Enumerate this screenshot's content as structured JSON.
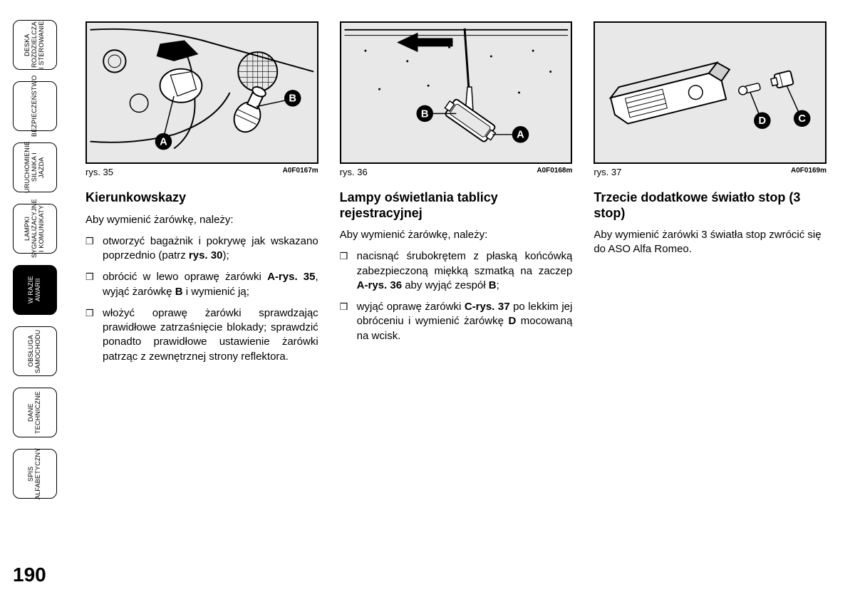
{
  "page_number": "190",
  "sidebar": {
    "tabs": [
      {
        "label": "DESKA\nROZDZIELCZA\nI STEROWANIE",
        "active": false
      },
      {
        "label": "BEZPIECZEŃSTWO",
        "active": false
      },
      {
        "label": "URUCHOMIENIE\nSILNIKA I JAZDA",
        "active": false
      },
      {
        "label": "LAMPKI\nSYGNALIZACYJNE\nI KOMUNIKATY",
        "active": false
      },
      {
        "label": "W RAZIE\nAWARII",
        "active": true
      },
      {
        "label": "OBSŁUGA\nSAMOCHODU",
        "active": false
      },
      {
        "label": "DANE\nTECHNICZNE",
        "active": false
      },
      {
        "label": "SPIS\nALFABETYCZNY",
        "active": false
      }
    ]
  },
  "columns": [
    {
      "figure": {
        "label": "rys. 35",
        "code": "A0F0167m",
        "callouts": [
          "A",
          "B"
        ]
      },
      "title": "Kierunkowskazy",
      "intro": "Aby wymienić żarówkę, należy:",
      "bullets": [
        "otworzyć bagażnik i pokrywę jak wskazano poprzednio (patrz <b>rys. 30</b>);",
        "obrócić w lewo oprawę żarówki <b>A-rys. 35</b>, wyjąć żarówkę <b>B</b> i wymienić ją;",
        "włożyć oprawę żarówki sprawdzając prawidłowe zatrzaśnięcie blokady; sprawdzić ponadto prawidłowe ustawienie żarówki patrząc z zewnętrznej strony reflektora."
      ]
    },
    {
      "figure": {
        "label": "rys. 36",
        "code": "A0F0168m",
        "callouts": [
          "B",
          "A"
        ]
      },
      "title": "Lampy oświetlania tablicy rejestracyjnej",
      "intro": "Aby wymienić żarówkę, należy:",
      "bullets": [
        "nacisnąć śrubokrętem z płaską końcówką zabezpieczoną miękką szmatką na zaczep <b>A-rys. 36</b> aby wyjąć zespół <b>B</b>;",
        "wyjąć oprawę żarówki <b>C-rys. 37</b> po lekkim jej obróceniu i wymienić żarówkę <b>D</b> mocowaną na wcisk."
      ]
    },
    {
      "figure": {
        "label": "rys. 37",
        "code": "A0F0169m",
        "callouts": [
          "D",
          "C"
        ]
      },
      "title": "Trzecie dodatkowe światło stop (3 stop)",
      "intro": "Aby wymienić żarówki 3 światła stop zwrócić się do ASO Alfa Romeo.",
      "bullets": []
    }
  ],
  "colors": {
    "page_bg": "#ffffff",
    "figure_bg": "#e8e8e8",
    "border": "#000000",
    "text": "#000000",
    "tab_active_bg": "#000000",
    "tab_active_fg": "#ffffff"
  }
}
